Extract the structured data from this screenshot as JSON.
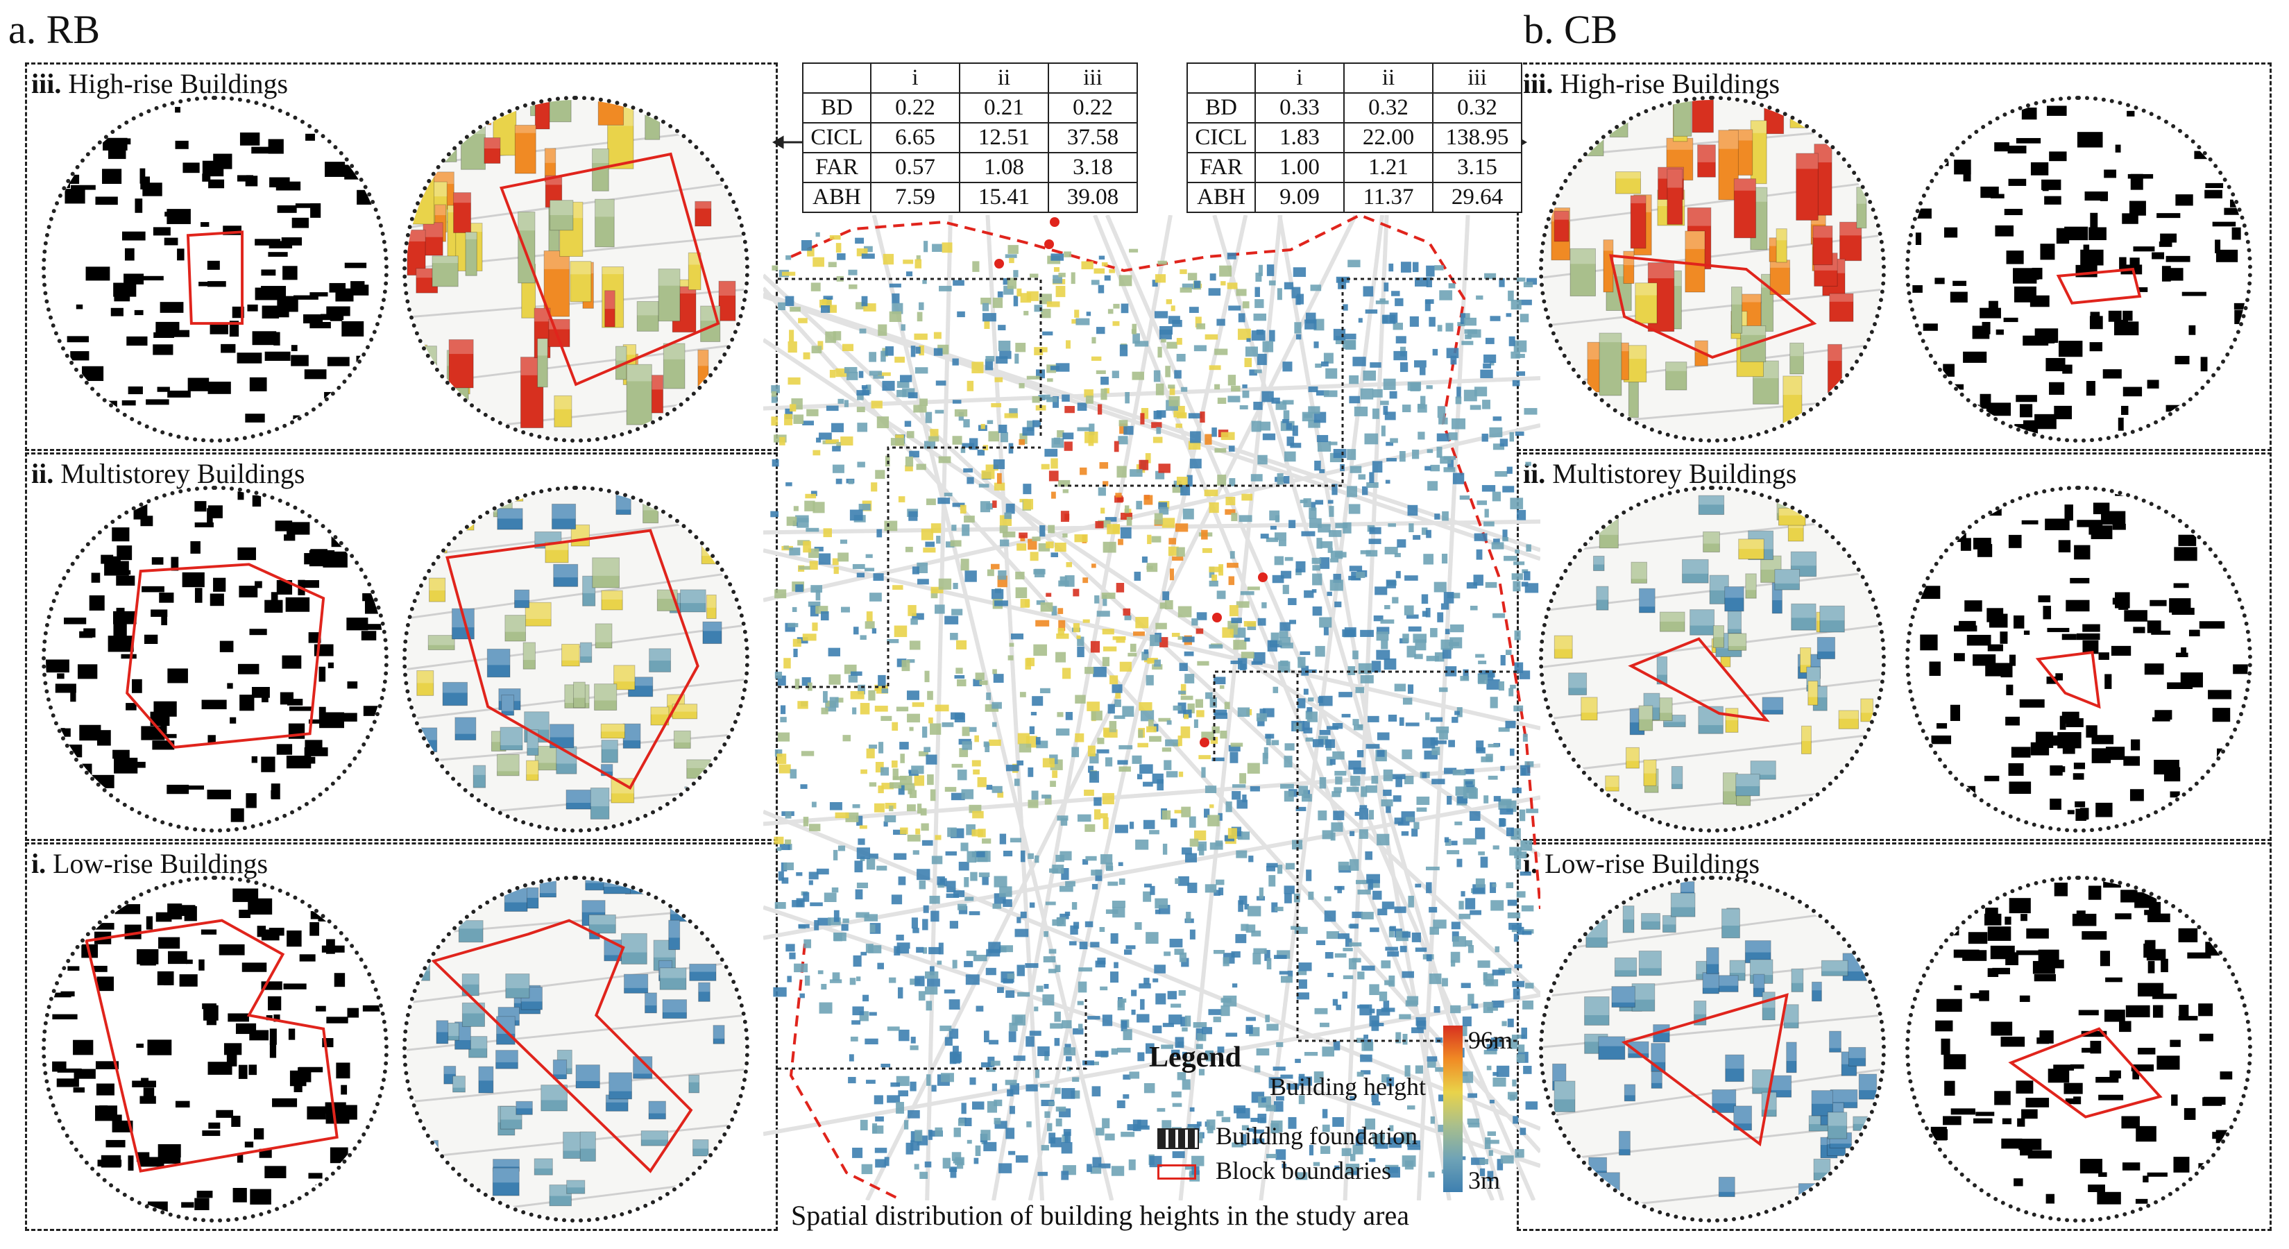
{
  "sections": {
    "left_title": "a. RB",
    "right_title": "b. CB"
  },
  "left_panels": [
    {
      "numeral": "iii.",
      "label": " High-rise Buildings"
    },
    {
      "numeral": "ii.",
      "label": " Multistorey Buildings"
    },
    {
      "numeral": "i.",
      "label": " Low-rise Buildings"
    }
  ],
  "right_panels": [
    {
      "numeral": "iii.",
      "label": " High-rise Buildings"
    },
    {
      "numeral": "ii.",
      "label": " Multistorey Buildings"
    },
    {
      "numeral": "i.",
      "label": " Low-rise Buildings"
    }
  ],
  "tables": {
    "columns": [
      "",
      "i",
      "ii",
      "iii"
    ],
    "rb": [
      [
        "BD",
        "0.22",
        "0.21",
        "0.22"
      ],
      [
        "CICL",
        "6.65",
        "12.51",
        "37.58"
      ],
      [
        "FAR",
        "0.57",
        "1.08",
        "3.18"
      ],
      [
        "ABH",
        "7.59",
        "15.41",
        "39.08"
      ]
    ],
    "cb": [
      [
        "BD",
        "0.33",
        "0.32",
        "0.32"
      ],
      [
        "CICL",
        "1.83",
        "22.00",
        "138.95"
      ],
      [
        "FAR",
        "1.00",
        "1.21",
        "3.15"
      ],
      [
        "ABH",
        "9.09",
        "11.37",
        "29.64"
      ]
    ]
  },
  "legend": {
    "title": "Legend",
    "height_label": "Building height",
    "max_label": "96m",
    "min_label": "3m",
    "foundation_label": "Building foundation",
    "boundary_label": "Block boundaries",
    "colors": [
      "#d7301f",
      "#f08a24",
      "#e9d34a",
      "#a9bf8c",
      "#6fa3b6",
      "#3d7fb0"
    ]
  },
  "caption": "Spatial distribution of building heights in the study area",
  "colors": {
    "boundary_red": "#e0241c",
    "low_blue": "#3d85b5",
    "mid_green": "#7fa39a",
    "high_orange": "#e8782a",
    "tall_red": "#d0432a",
    "yellow": "#e8d75a"
  }
}
